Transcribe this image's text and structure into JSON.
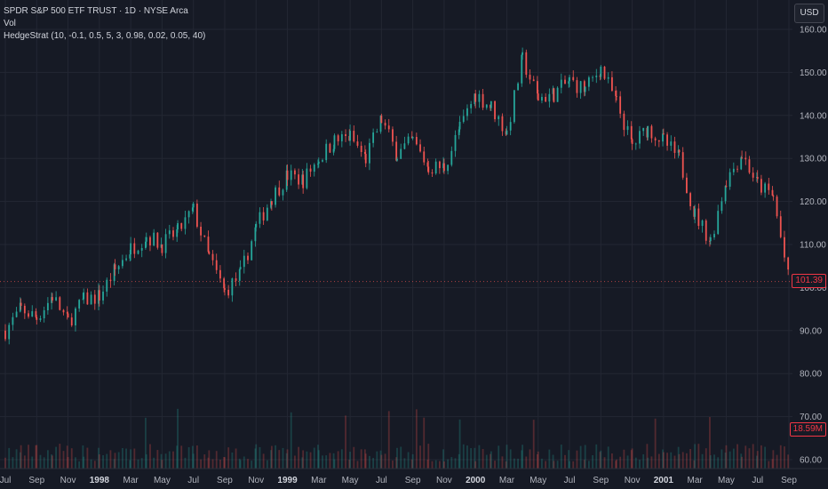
{
  "legend": {
    "line1": "SPDR S&P 500 ETF TRUST · 1D · NYSE Arca",
    "line2": "Vol",
    "line3": "HedgeStrat (10, -0.1, 0.5, 5, 3, 0.98, 0.02, 0.05, 40)"
  },
  "currency_button": "USD",
  "badges": {
    "price": "101.39",
    "volume": "18.59M"
  },
  "colors": {
    "background": "#161a25",
    "grid": "#232733",
    "up": "#26a69a",
    "down": "#ef5350",
    "text": "#b2b5be"
  },
  "chart_data": {
    "type": "candlestick",
    "symbol": "SPDR S&P 500 ETF TRUST",
    "interval": "1D",
    "exchange": "NYSE Arca",
    "y_ticks": [
      "160.00",
      "150.00",
      "140.00",
      "130.00",
      "120.00",
      "110.00",
      "100.00",
      "90.00",
      "80.00",
      "70.00",
      "60.00"
    ],
    "ylim": [
      60,
      160
    ],
    "x_ticks": [
      "Jul",
      "Sep",
      "Nov",
      "1998",
      "Mar",
      "May",
      "Jul",
      "Sep",
      "Nov",
      "1999",
      "Mar",
      "May",
      "Jul",
      "Sep",
      "Nov",
      "2000",
      "Mar",
      "May",
      "Jul",
      "Sep",
      "Nov",
      "2001",
      "Mar",
      "May",
      "Jul",
      "Sep"
    ],
    "x_tick_dates": [
      "1997-07",
      "1997-09",
      "1997-11",
      "1998-01",
      "1998-03",
      "1998-05",
      "1998-07",
      "1998-09",
      "1998-11",
      "1999-01",
      "1999-03",
      "1999-05",
      "1999-07",
      "1999-09",
      "1999-11",
      "2000-01",
      "2000-03",
      "2000-05",
      "2000-07",
      "2000-09",
      "2000-11",
      "2001-01",
      "2001-03",
      "2001-05",
      "2001-07",
      "2001-09"
    ],
    "price_path": [
      {
        "date": "1997-07",
        "close": 90
      },
      {
        "date": "1997-08",
        "close": 95
      },
      {
        "date": "1997-09",
        "close": 93
      },
      {
        "date": "1997-10",
        "close": 98
      },
      {
        "date": "1997-11",
        "close": 92
      },
      {
        "date": "1997-12",
        "close": 97
      },
      {
        "date": "1998-01",
        "close": 98
      },
      {
        "date": "1998-02",
        "close": 104
      },
      {
        "date": "1998-03",
        "close": 109
      },
      {
        "date": "1998-04",
        "close": 112
      },
      {
        "date": "1998-05",
        "close": 110
      },
      {
        "date": "1998-06",
        "close": 113
      },
      {
        "date": "1998-07",
        "close": 118
      },
      {
        "date": "1998-08",
        "close": 107
      },
      {
        "date": "1998-09",
        "close": 99
      },
      {
        "date": "1998-10",
        "close": 103
      },
      {
        "date": "1998-11",
        "close": 114
      },
      {
        "date": "1998-12",
        "close": 121
      },
      {
        "date": "1999-01",
        "close": 126
      },
      {
        "date": "1999-02",
        "close": 125
      },
      {
        "date": "1999-03",
        "close": 130
      },
      {
        "date": "1999-04",
        "close": 134
      },
      {
        "date": "1999-05",
        "close": 135
      },
      {
        "date": "1999-06",
        "close": 130
      },
      {
        "date": "1999-07",
        "close": 139
      },
      {
        "date": "1999-08",
        "close": 131
      },
      {
        "date": "1999-09",
        "close": 134
      },
      {
        "date": "1999-10",
        "close": 128
      },
      {
        "date": "1999-11",
        "close": 128
      },
      {
        "date": "1999-12",
        "close": 137
      },
      {
        "date": "2000-01",
        "close": 145
      },
      {
        "date": "2000-02",
        "close": 142
      },
      {
        "date": "2000-03",
        "close": 136
      },
      {
        "date": "2000-04",
        "close": 153
      },
      {
        "date": "2000-05",
        "close": 144
      },
      {
        "date": "2000-06",
        "close": 145
      },
      {
        "date": "2000-07",
        "close": 148
      },
      {
        "date": "2000-08",
        "close": 146
      },
      {
        "date": "2000-09",
        "close": 151
      },
      {
        "date": "2000-10",
        "close": 143
      },
      {
        "date": "2000-11",
        "close": 133
      },
      {
        "date": "2000-12",
        "close": 137
      },
      {
        "date": "2001-01",
        "close": 134
      },
      {
        "date": "2001-02",
        "close": 130
      },
      {
        "date": "2001-03",
        "close": 117
      },
      {
        "date": "2001-04",
        "close": 111
      },
      {
        "date": "2001-05",
        "close": 125
      },
      {
        "date": "2001-06",
        "close": 131
      },
      {
        "date": "2001-07",
        "close": 124
      },
      {
        "date": "2001-08",
        "close": 121
      },
      {
        "date": "2001-09",
        "close": 101.39
      }
    ],
    "last_price": 101.39,
    "last_volume": "18.59M"
  }
}
